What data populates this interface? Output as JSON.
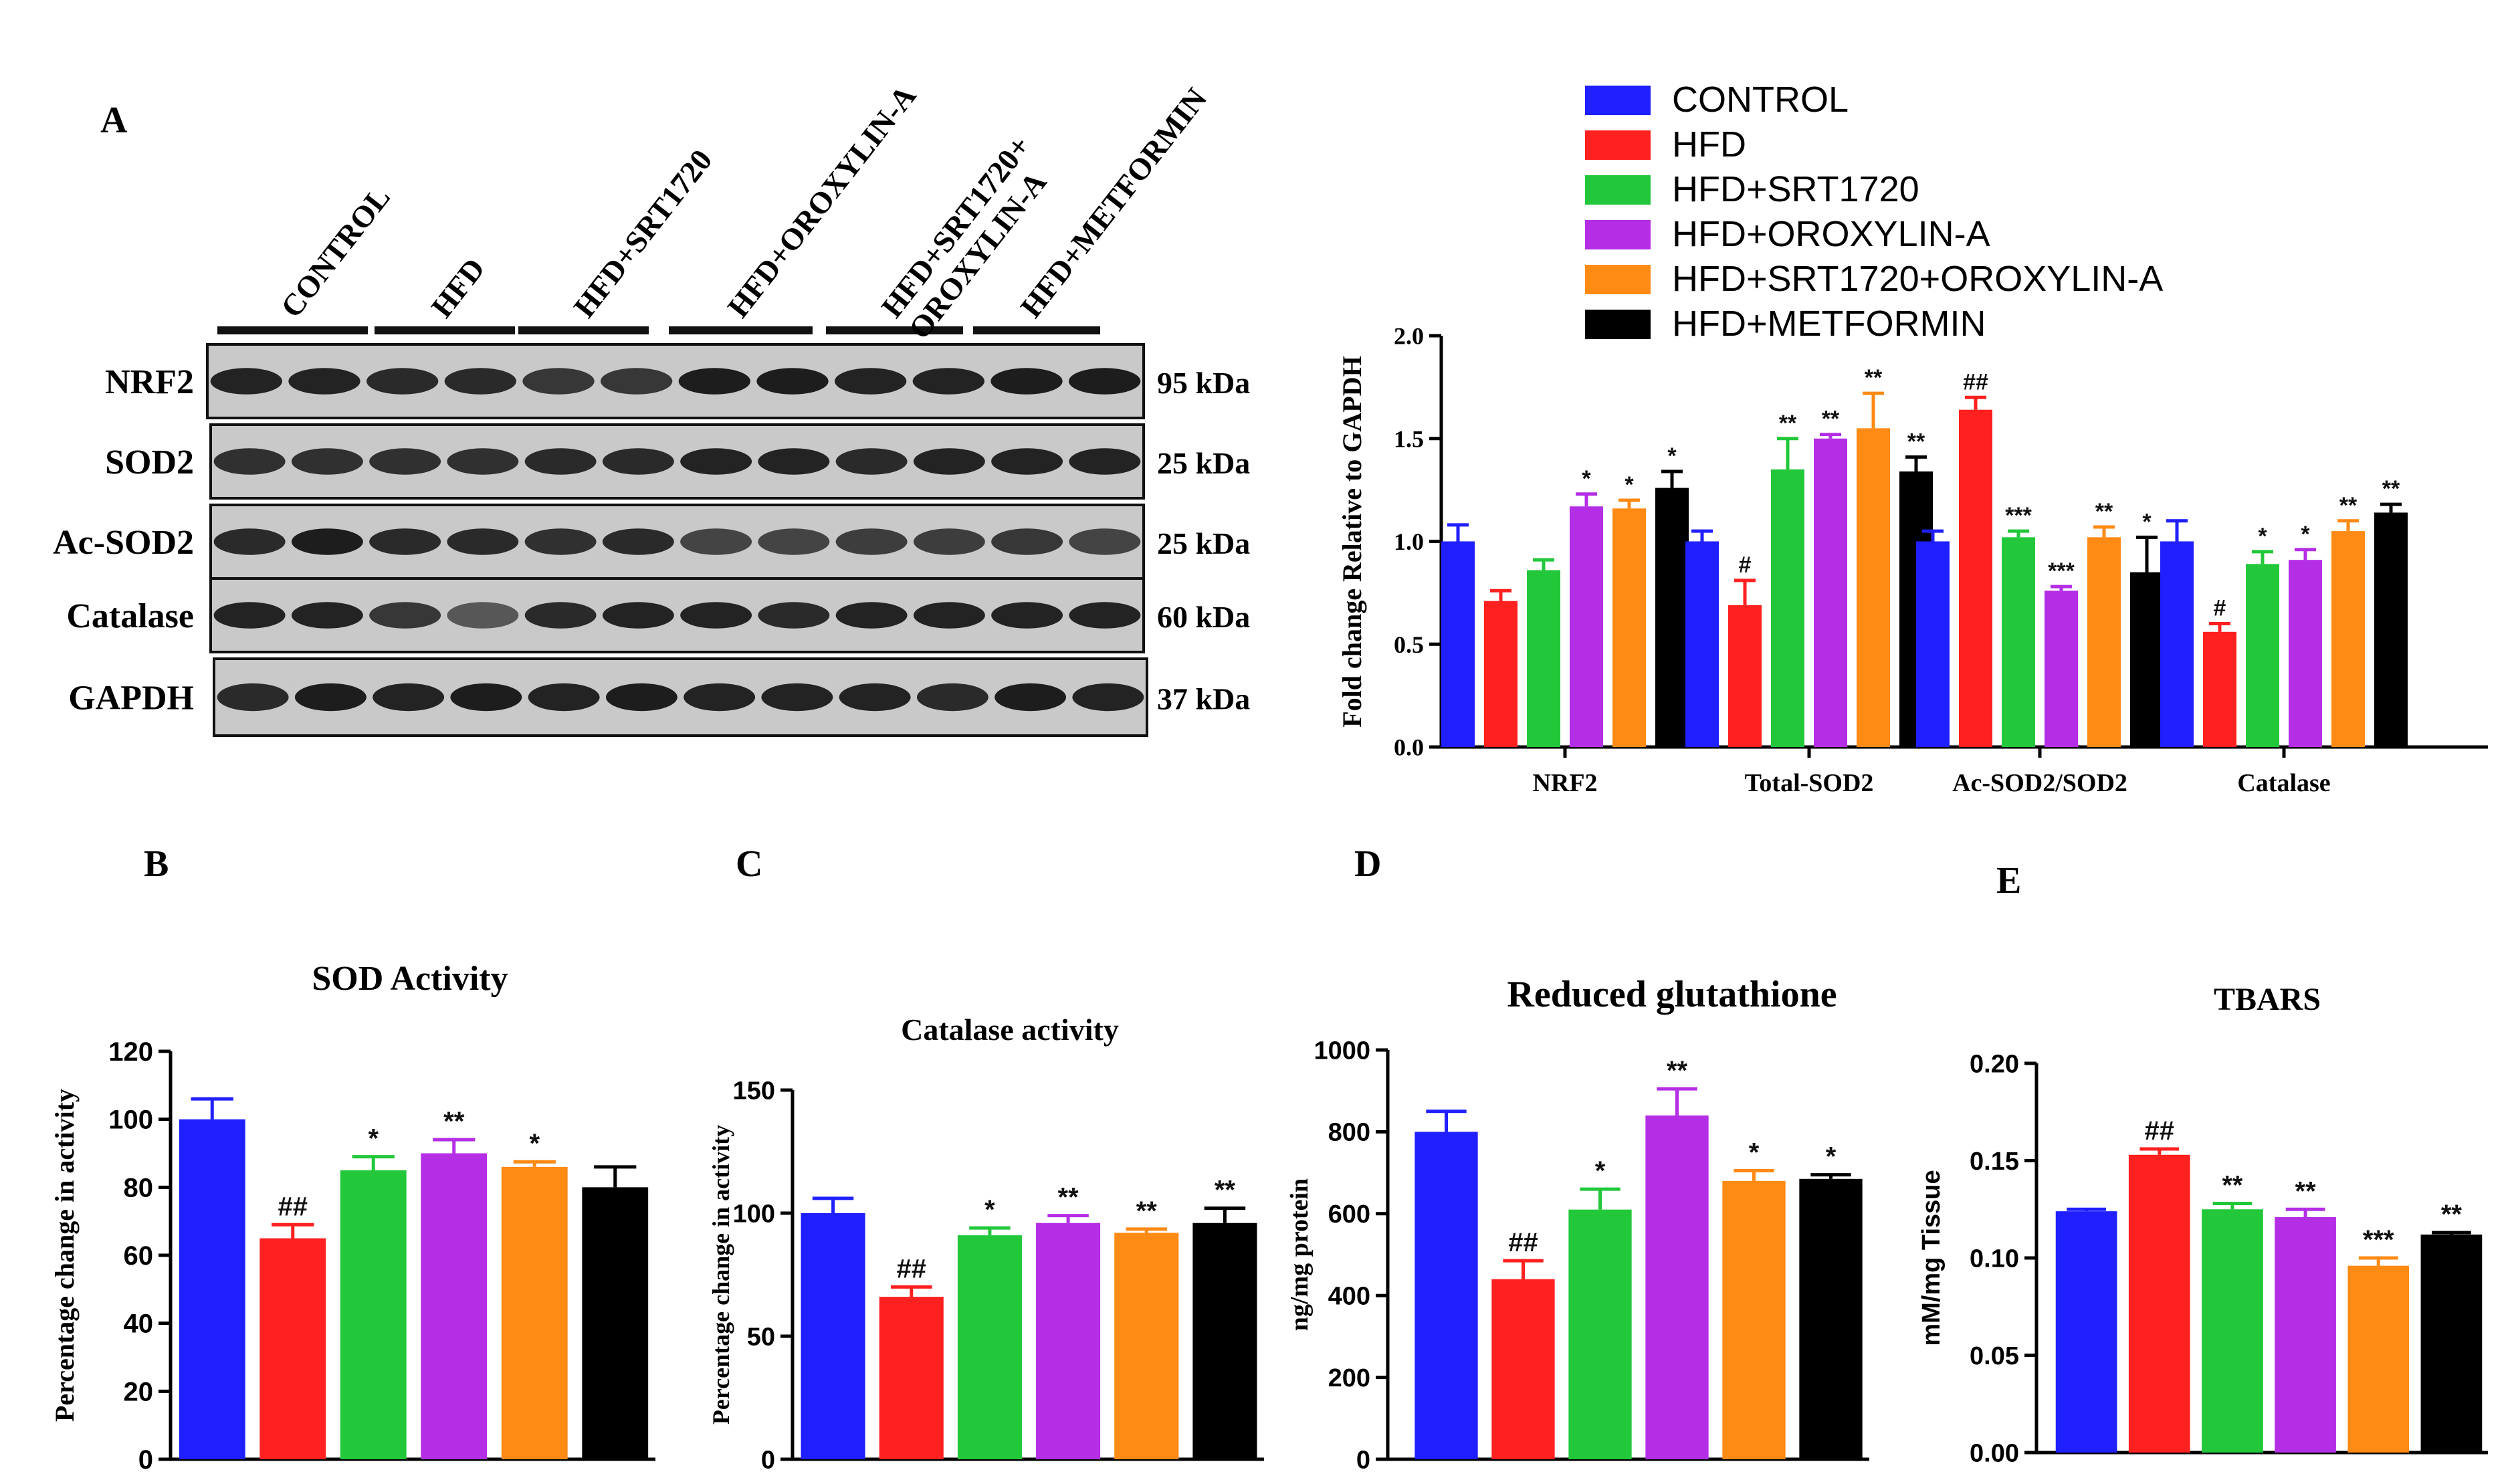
{
  "groups": [
    {
      "name": "CONTROL",
      "color": "#1f1fff"
    },
    {
      "name": "HFD",
      "color": "#ff2020"
    },
    {
      "name": "HFD+SRT1720",
      "color": "#22c83a"
    },
    {
      "name": "HFD+OROXYLIN-A",
      "color": "#b42ee6"
    },
    {
      "name": "HFD+SRT1720+OROXYLIN-A",
      "color": "#ff8a14"
    },
    {
      "name": "HFD+METFORMIN",
      "color": "#000000"
    }
  ],
  "blot": {
    "panel_label": "A",
    "lane_labels": [
      "CONTROL",
      "HFD",
      "HFD+SRT1720",
      "HFD+OROXYLIN-A",
      "HFD+SRT1720+\nOROXYLIN-A",
      "HFD+METFORMIN"
    ],
    "rows": [
      {
        "protein": "NRF2",
        "size": "95 kDa"
      },
      {
        "protein": "SOD2",
        "size": "25 kDa"
      },
      {
        "protein": "Ac-SOD2",
        "size": "25 kDa"
      },
      {
        "protein": "Catalase",
        "size": "60 kDa"
      },
      {
        "protein": "GAPDH",
        "size": "37 kDa"
      }
    ]
  },
  "chart_data": [
    {
      "type": "bar",
      "panel": "A",
      "title": "",
      "xlabel": "",
      "ylabel": "Fold change Relative to GAPDH",
      "ylim": [
        0,
        2.0
      ],
      "yticks": [
        "0.0",
        "0.5",
        "1.0",
        "1.5",
        "2.0"
      ],
      "categories": [
        "NRF2",
        "Total-SOD2",
        "Ac-SOD2/SOD2",
        "Catalase"
      ],
      "legend": "top-right",
      "series": [
        {
          "name": "CONTROL",
          "values": [
            1.0,
            1.0,
            1.0,
            1.0
          ],
          "errors": [
            0.08,
            0.05,
            0.05,
            0.1
          ],
          "annotations": [
            "",
            "",
            "",
            ""
          ]
        },
        {
          "name": "HFD",
          "values": [
            0.71,
            0.69,
            1.64,
            0.56
          ],
          "errors": [
            0.05,
            0.12,
            0.06,
            0.04
          ],
          "annotations": [
            "",
            "#",
            "##",
            "#"
          ]
        },
        {
          "name": "HFD+SRT1720",
          "values": [
            0.86,
            1.35,
            1.02,
            0.89
          ],
          "errors": [
            0.05,
            0.15,
            0.03,
            0.06
          ],
          "annotations": [
            "",
            "**",
            "***",
            "*"
          ]
        },
        {
          "name": "HFD+OROXYLIN-A",
          "values": [
            1.17,
            1.5,
            0.76,
            0.91
          ],
          "errors": [
            0.06,
            0.02,
            0.02,
            0.05
          ],
          "annotations": [
            "*",
            "**",
            "***",
            "*"
          ]
        },
        {
          "name": "HFD+SRT1720+OROXYLIN-A",
          "values": [
            1.16,
            1.55,
            1.02,
            1.05
          ],
          "errors": [
            0.04,
            0.17,
            0.05,
            0.05
          ],
          "annotations": [
            "*",
            "**",
            "**",
            "**"
          ]
        },
        {
          "name": "HFD+METFORMIN",
          "values": [
            1.26,
            1.34,
            0.85,
            1.14
          ],
          "errors": [
            0.08,
            0.07,
            0.17,
            0.04
          ],
          "annotations": [
            "*",
            "**",
            "*",
            "**"
          ]
        }
      ]
    },
    {
      "type": "bar",
      "panel": "B",
      "title": "SOD Activity",
      "xlabel": "",
      "ylabel": "Percentage change in activity",
      "ylim": [
        0,
        120
      ],
      "yticks": [
        "0",
        "20",
        "40",
        "60",
        "80",
        "100",
        "120"
      ],
      "categories": [
        "CONTROL",
        "HFD",
        "HFD+SRT1720",
        "HFD+OROXYLIN-A",
        "HFD+SRT1720+OROXYLIN-A",
        "HFD+METFORMIN"
      ],
      "values": [
        100,
        65,
        85,
        90,
        86,
        80
      ],
      "errors": [
        6,
        4,
        4,
        4,
        1.5,
        6
      ],
      "annotations": [
        "",
        "##",
        "*",
        "**",
        "*",
        ""
      ]
    },
    {
      "type": "bar",
      "panel": "C",
      "title": "Catalase activity",
      "xlabel": "",
      "ylabel": "Percentage change in activity",
      "ylim": [
        0,
        150
      ],
      "yticks": [
        "0",
        "50",
        "100",
        "150"
      ],
      "categories": [
        "CONTROL",
        "HFD",
        "HFD+SRT1720",
        "HFD+OROXYLIN-A",
        "HFD+SRT1720+OROXYLIN-A",
        "HFD+METFORMIN"
      ],
      "values": [
        100,
        66,
        91,
        96,
        92,
        96
      ],
      "errors": [
        6,
        4,
        3,
        3,
        1.5,
        6
      ],
      "annotations": [
        "",
        "##",
        "*",
        "**",
        "**",
        "**"
      ]
    },
    {
      "type": "bar",
      "panel": "D",
      "title": "Reduced glutathione",
      "xlabel": "",
      "ylabel": "ng/mg protein",
      "ylim": [
        0,
        1000
      ],
      "yticks": [
        "0",
        "200",
        "400",
        "600",
        "800",
        "1000"
      ],
      "categories": [
        "CONTROL",
        "HFD",
        "HFD+SRT1720",
        "HFD+OROXYLIN-A",
        "HFD+SRT1720+OROXYLIN-A",
        "HFD+METFORMIN"
      ],
      "values": [
        800,
        440,
        610,
        840,
        680,
        685
      ],
      "errors": [
        50,
        45,
        50,
        65,
        25,
        10
      ],
      "annotations": [
        "",
        "##",
        "*",
        "**",
        "*",
        "*"
      ]
    },
    {
      "type": "bar",
      "panel": "E",
      "title": "TBARS",
      "xlabel": "",
      "ylabel": "mM/mg Tissue",
      "ylim": [
        0,
        0.2
      ],
      "yticks": [
        "0.00",
        "0.05",
        "0.10",
        "0.15",
        "0.20"
      ],
      "categories": [
        "CONTROL",
        "HFD",
        "HFD+SRT1720",
        "HFD+OROXYLIN-A",
        "HFD+SRT1720+OROXYLIN-A",
        "HFD+METFORMIN"
      ],
      "values": [
        0.124,
        0.153,
        0.125,
        0.121,
        0.096,
        0.112
      ],
      "errors": [
        0.001,
        0.003,
        0.003,
        0.004,
        0.004,
        0.001
      ],
      "annotations": [
        "",
        "##",
        "**",
        "**",
        "***",
        "**"
      ]
    }
  ]
}
